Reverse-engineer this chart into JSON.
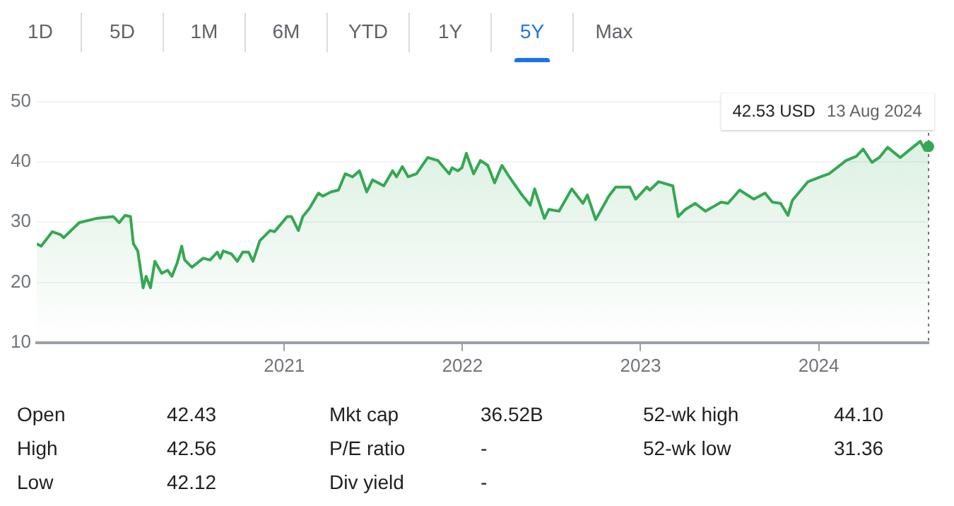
{
  "chart_data": {
    "type": "area",
    "annotations": [
      "1D",
      "5D",
      "1M",
      "6M",
      "YTD",
      "1Y",
      "5Y",
      "Max",
      "Open",
      "42.43",
      "Mkt cap",
      "36.52B",
      "52-wk high",
      "44.10",
      "High",
      "42.56",
      "P/E ratio",
      "-",
      "52-wk low",
      "31.36",
      "Low",
      "42.12",
      "Div yield",
      "-",
      {
        "text": "42.53 USD  13 Aug 2024",
        "x": "2024-08-13",
        "y": 42.53
      }
    ],
    "x": [
      "2019-08-13",
      "2019-08-22",
      "2019-09-14",
      "2019-10-01",
      "2019-10-07",
      "2019-11-08",
      "2019-12-13",
      "2020-01-17",
      "2020-01-29",
      "2020-02-10",
      "2020-02-21",
      "2020-02-27",
      "2020-03-07",
      "2020-03-18",
      "2020-03-24",
      "2020-04-02",
      "2020-04-11",
      "2020-04-25",
      "2020-05-07",
      "2020-05-16",
      "2020-05-27",
      "2020-06-05",
      "2020-06-11",
      "2020-06-26",
      "2020-07-19",
      "2020-08-02",
      "2020-08-17",
      "2020-08-23",
      "2020-08-29",
      "2020-09-15",
      "2020-09-27",
      "2020-10-08",
      "2020-10-20",
      "2020-10-29",
      "2020-11-12",
      "2020-12-03",
      "2020-12-12",
      "2021-01-07",
      "2021-01-16",
      "2021-01-30",
      "2021-02-08",
      "2021-02-22",
      "2021-03-12",
      "2021-03-21",
      "2021-04-07",
      "2021-04-22",
      "2021-05-06",
      "2021-05-21",
      "2021-06-04",
      "2021-06-19",
      "2021-07-01",
      "2021-07-24",
      "2021-08-11",
      "2021-08-19",
      "2021-08-31",
      "2021-09-12",
      "2021-09-29",
      "2021-10-22",
      "2021-11-12",
      "2021-12-05",
      "2021-12-11",
      "2021-12-23",
      "2021-12-31",
      "2022-01-09",
      "2022-01-24",
      "2022-02-07",
      "2022-02-22",
      "2022-03-08",
      "2022-03-23",
      "2022-04-07",
      "2022-05-03",
      "2022-05-20",
      "2022-05-29",
      "2022-06-18",
      "2022-06-27",
      "2022-07-18",
      "2022-08-13",
      "2022-09-05",
      "2022-09-14",
      "2022-10-01",
      "2022-10-28",
      "2022-11-11",
      "2022-12-10",
      "2022-12-22",
      "2023-01-14",
      "2023-01-20",
      "2023-02-07",
      "2023-03-08",
      "2023-03-19",
      "2023-04-03",
      "2023-04-23",
      "2023-05-14",
      "2023-06-15",
      "2023-06-29",
      "2023-07-23",
      "2023-08-21",
      "2023-09-13",
      "2023-09-28",
      "2023-10-15",
      "2023-10-30",
      "2023-11-08",
      "2023-12-10",
      "2024-01-05",
      "2024-01-22",
      "2024-02-26",
      "2024-03-18",
      "2024-04-01",
      "2024-04-19",
      "2024-05-04",
      "2024-05-21",
      "2024-06-16",
      "2024-07-01",
      "2024-07-27",
      "2024-08-06",
      "2024-08-13"
    ],
    "series": [
      {
        "color": "#34a853",
        "values": [
          26.4,
          26.0,
          28.4,
          27.9,
          27.4,
          29.9,
          30.6,
          30.9,
          29.9,
          31.1,
          30.9,
          26.4,
          25.2,
          19.1,
          21.0,
          19.1,
          23.5,
          21.5,
          22.0,
          21.0,
          23.3,
          26.0,
          23.7,
          22.5,
          24.0,
          23.7,
          25.0,
          24.0,
          25.2,
          24.7,
          23.5,
          25.0,
          25.0,
          23.5,
          26.9,
          28.6,
          28.4,
          30.9,
          30.9,
          28.6,
          30.9,
          32.3,
          34.8,
          34.3,
          35.0,
          35.3,
          38.0,
          37.5,
          38.5,
          35.0,
          37.0,
          36.0,
          38.5,
          37.5,
          39.2,
          37.5,
          38.0,
          40.7,
          40.2,
          38.0,
          39.0,
          38.5,
          39.0,
          41.4,
          38.0,
          40.2,
          39.4,
          36.5,
          39.4,
          37.5,
          34.5,
          32.8,
          35.5,
          30.6,
          32.1,
          31.8,
          35.5,
          33.1,
          34.5,
          30.4,
          34.3,
          35.8,
          35.8,
          33.8,
          35.8,
          35.3,
          36.7,
          36.0,
          30.9,
          32.1,
          33.1,
          31.8,
          33.3,
          33.1,
          35.3,
          33.8,
          34.8,
          33.3,
          33.1,
          31.1,
          33.6,
          36.7,
          37.5,
          38.0,
          40.2,
          40.9,
          42.1,
          39.9,
          40.7,
          42.4,
          40.7,
          41.7,
          43.4,
          41.9,
          42.53
        ]
      }
    ],
    "xlim": [
      "2019-08-13",
      "2024-08-13"
    ],
    "xticks": [
      {
        "value": "2021-01-01",
        "label": "2021"
      },
      {
        "value": "2022-01-01",
        "label": "2022"
      },
      {
        "value": "2023-01-01",
        "label": "2023"
      },
      {
        "value": "2024-01-01",
        "label": "2024"
      }
    ],
    "ylim": [
      10,
      50
    ],
    "yticks": [
      10,
      20,
      30,
      40,
      50
    ],
    "grid": "y",
    "ref_lines": [
      {
        "axis": "x",
        "value": "2024-08-13",
        "line_style": "dotted",
        "color": "#757575"
      }
    ]
  }
}
